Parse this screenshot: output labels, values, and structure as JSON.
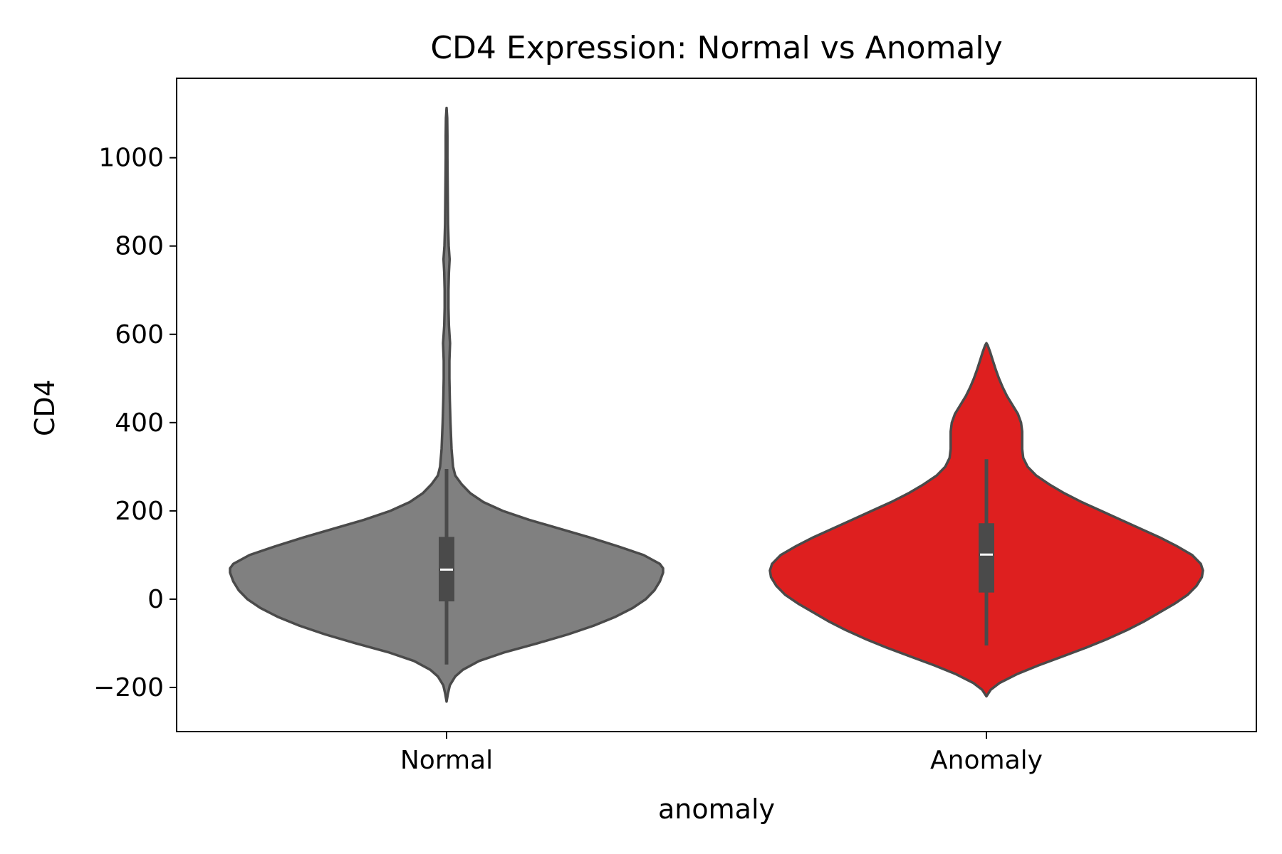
{
  "chart_data": {
    "type": "violin",
    "title": "CD4 Expression: Normal vs Anomaly",
    "xlabel": "anomaly",
    "ylabel": "CD4",
    "categories": [
      "Normal",
      "Anomaly"
    ],
    "ylim": [
      -300,
      1180
    ],
    "yticks": [
      -200,
      0,
      200,
      400,
      600,
      800,
      1000
    ],
    "ytick_labels": [
      "−200",
      "0",
      "200",
      "400",
      "600",
      "800",
      "1000"
    ],
    "grid": false,
    "legend": "none",
    "series": [
      {
        "category": "Normal",
        "color": "#808080",
        "min": -232,
        "max": 1113,
        "whisker_low": -148,
        "q1": -5,
        "median": 67,
        "q3": 141,
        "whisker_high": 295,
        "density_profile": [
          [
            -232,
            0.0
          ],
          [
            -215,
            0.006
          ],
          [
            -195,
            0.015
          ],
          [
            -175,
            0.04
          ],
          [
            -160,
            0.075
          ],
          [
            -140,
            0.15
          ],
          [
            -120,
            0.27
          ],
          [
            -100,
            0.42
          ],
          [
            -80,
            0.56
          ],
          [
            -60,
            0.68
          ],
          [
            -40,
            0.78
          ],
          [
            -20,
            0.86
          ],
          [
            0,
            0.92
          ],
          [
            20,
            0.96
          ],
          [
            40,
            0.985
          ],
          [
            60,
            1.0
          ],
          [
            70,
            1.0
          ],
          [
            80,
            0.985
          ],
          [
            100,
            0.91
          ],
          [
            120,
            0.79
          ],
          [
            140,
            0.66
          ],
          [
            160,
            0.52
          ],
          [
            180,
            0.38
          ],
          [
            200,
            0.26
          ],
          [
            220,
            0.17
          ],
          [
            240,
            0.11
          ],
          [
            260,
            0.07
          ],
          [
            280,
            0.04
          ],
          [
            300,
            0.03
          ],
          [
            340,
            0.023
          ],
          [
            400,
            0.018
          ],
          [
            450,
            0.015
          ],
          [
            500,
            0.013
          ],
          [
            540,
            0.013
          ],
          [
            580,
            0.016
          ],
          [
            620,
            0.011
          ],
          [
            660,
            0.009
          ],
          [
            700,
            0.009
          ],
          [
            740,
            0.011
          ],
          [
            770,
            0.014
          ],
          [
            800,
            0.01
          ],
          [
            850,
            0.007
          ],
          [
            900,
            0.006
          ],
          [
            950,
            0.005
          ],
          [
            1000,
            0.004
          ],
          [
            1050,
            0.004
          ],
          [
            1090,
            0.003
          ],
          [
            1113,
            0.0
          ]
        ]
      },
      {
        "category": "Anomaly",
        "color": "#de1f1f",
        "min": -220,
        "max": 580,
        "whisker_low": -105,
        "q1": 15,
        "median": 101,
        "q3": 172,
        "whisker_high": 317,
        "density_profile": [
          [
            -220,
            0.0
          ],
          [
            -205,
            0.02
          ],
          [
            -190,
            0.06
          ],
          [
            -170,
            0.14
          ],
          [
            -150,
            0.24
          ],
          [
            -130,
            0.35
          ],
          [
            -110,
            0.46
          ],
          [
            -90,
            0.56
          ],
          [
            -70,
            0.65
          ],
          [
            -50,
            0.73
          ],
          [
            -30,
            0.8
          ],
          [
            -10,
            0.87
          ],
          [
            10,
            0.93
          ],
          [
            30,
            0.97
          ],
          [
            50,
            0.995
          ],
          [
            65,
            1.0
          ],
          [
            80,
            0.99
          ],
          [
            100,
            0.95
          ],
          [
            120,
            0.88
          ],
          [
            140,
            0.8
          ],
          [
            160,
            0.71
          ],
          [
            180,
            0.62
          ],
          [
            200,
            0.53
          ],
          [
            220,
            0.44
          ],
          [
            240,
            0.36
          ],
          [
            260,
            0.29
          ],
          [
            280,
            0.23
          ],
          [
            300,
            0.19
          ],
          [
            320,
            0.17
          ],
          [
            340,
            0.165
          ],
          [
            360,
            0.165
          ],
          [
            380,
            0.165
          ],
          [
            400,
            0.16
          ],
          [
            420,
            0.145
          ],
          [
            440,
            0.12
          ],
          [
            460,
            0.095
          ],
          [
            480,
            0.075
          ],
          [
            500,
            0.058
          ],
          [
            520,
            0.043
          ],
          [
            540,
            0.03
          ],
          [
            560,
            0.017
          ],
          [
            575,
            0.006
          ],
          [
            580,
            0.0
          ]
        ]
      }
    ]
  }
}
